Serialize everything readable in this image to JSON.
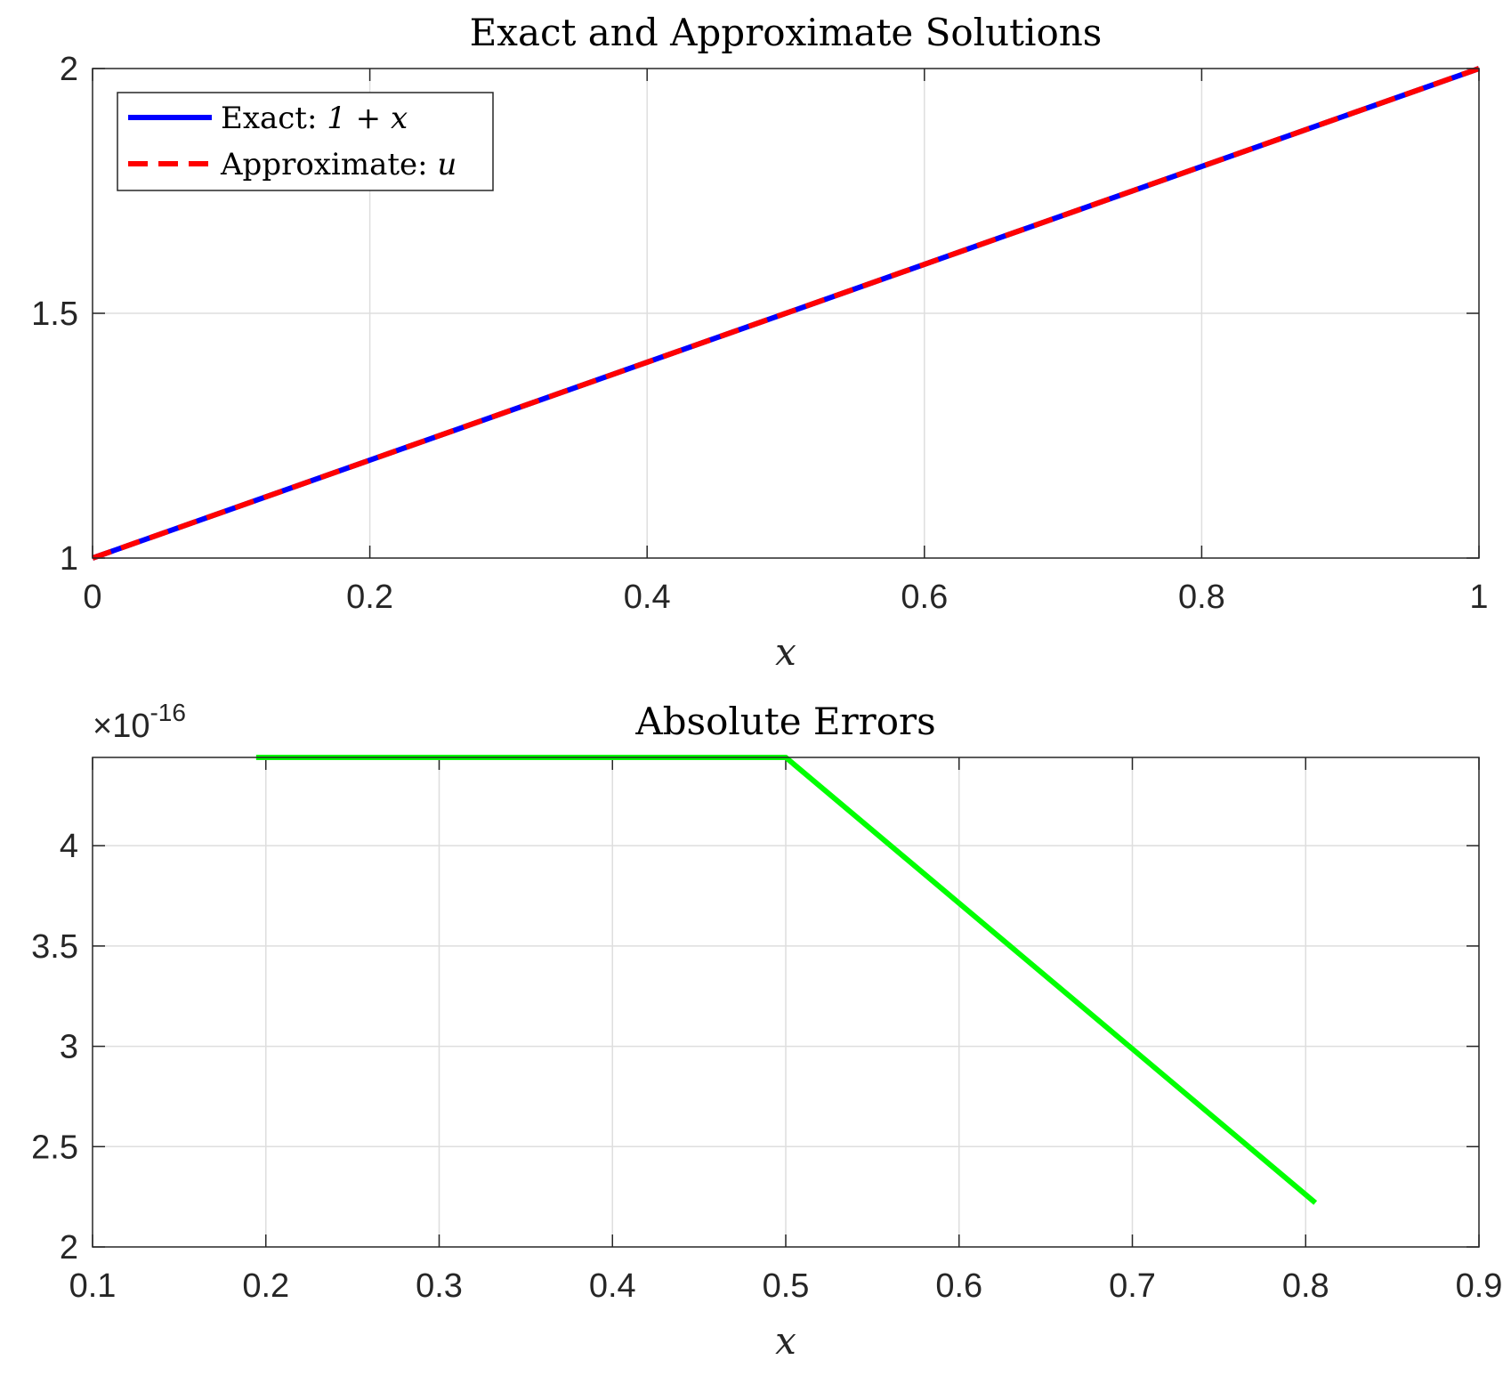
{
  "chart_data": [
    {
      "type": "line",
      "title": "Exact and Approximate Solutions",
      "xlabel": "x",
      "ylabel": "",
      "xlim": [
        0,
        1
      ],
      "ylim": [
        1,
        2
      ],
      "xticks": [
        0,
        0.2,
        0.4,
        0.6,
        0.8,
        1
      ],
      "xtick_labels": [
        "0",
        "0.2",
        "0.4",
        "0.6",
        "0.8",
        "1"
      ],
      "yticks": [
        1,
        1.5,
        2
      ],
      "ytick_labels": [
        "1",
        "1.5",
        "2"
      ],
      "grid": true,
      "legend_position": "top-left",
      "series": [
        {
          "name": "Exact: 1 + x",
          "legend_prefix": "Exact: ",
          "legend_math": "1 + x",
          "color": "#0000ff",
          "style": "solid",
          "x": [
            0,
            1
          ],
          "y": [
            1,
            2
          ]
        },
        {
          "name": "Approximate: u",
          "legend_prefix": "Approximate: ",
          "legend_math": "u",
          "color": "#ff0000",
          "style": "dashed",
          "x": [
            0,
            1
          ],
          "y": [
            1,
            2
          ]
        }
      ]
    },
    {
      "type": "line",
      "title": "Absolute Errors",
      "xlabel": "x",
      "ylabel": "",
      "xlim": [
        0.1,
        0.9
      ],
      "ylim": [
        2,
        4.44
      ],
      "y_exponent_label": "×10",
      "y_exponent": "-16",
      "xticks": [
        0.1,
        0.2,
        0.3,
        0.4,
        0.5,
        0.6,
        0.7,
        0.8,
        0.9
      ],
      "xtick_labels": [
        "0.1",
        "0.2",
        "0.3",
        "0.4",
        "0.5",
        "0.6",
        "0.7",
        "0.8",
        "0.9"
      ],
      "yticks": [
        2,
        2.5,
        3,
        3.5,
        4
      ],
      "ytick_labels": [
        "2",
        "2.5",
        "3",
        "3.5",
        "4"
      ],
      "grid": true,
      "series": [
        {
          "color": "#00ff00",
          "style": "solid",
          "x": [
            0.1944,
            0.5,
            0.8056
          ],
          "y": [
            4.44,
            4.44,
            2.22
          ]
        }
      ]
    }
  ]
}
